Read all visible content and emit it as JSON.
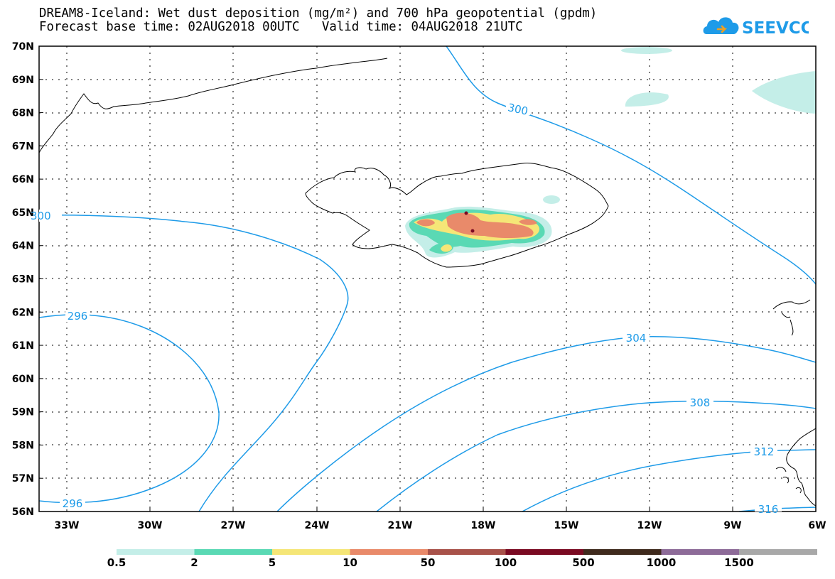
{
  "header": {
    "title_line1": "DREAM8-Iceland: Wet dust deposition (mg/m²) and 700 hPa geopotential (gpdm)",
    "title_line2": "Forecast base time: 02AUG2018 00UTC   Valid time: 04AUG2018 21UTC"
  },
  "logo": {
    "text": "SEEVCCC",
    "color": "#1e9be8"
  },
  "map": {
    "lon_labels": [
      "33W",
      "30W",
      "27W",
      "24W",
      "21W",
      "18W",
      "15W",
      "12W",
      "9W",
      "6W"
    ],
    "lat_labels": [
      "70N",
      "69N",
      "68N",
      "67N",
      "66N",
      "65N",
      "64N",
      "63N",
      "62N",
      "61N",
      "60N",
      "59N",
      "58N",
      "57N",
      "56N"
    ],
    "contour_labels": [
      "300",
      "300",
      "296",
      "296",
      "304",
      "308",
      "312",
      "316"
    ],
    "contour_color": "#1e9be8",
    "coastline_color": "#000000"
  },
  "legend": {
    "colors": [
      "#c4eee8",
      "#5ad9b4",
      "#f5e677",
      "#e98a6a",
      "#a8524a",
      "#7a0a22",
      "#3f2a1d",
      "#8d6b98",
      "#a8a8a8"
    ],
    "labels": [
      "0.5",
      "2",
      "5",
      "10",
      "50",
      "100",
      "500",
      "1000",
      "1500"
    ]
  }
}
